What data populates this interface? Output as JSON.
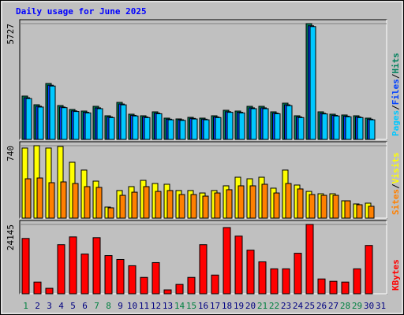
{
  "chart_data": {
    "type": "bar",
    "title": "Daily usage for June 2025",
    "categories": [
      "1",
      "2",
      "3",
      "4",
      "5",
      "6",
      "7",
      "8",
      "9",
      "10",
      "11",
      "12",
      "13",
      "14",
      "15",
      "16",
      "17",
      "18",
      "19",
      "20",
      "21",
      "22",
      "23",
      "24",
      "25",
      "26",
      "27",
      "28",
      "29",
      "30",
      "31"
    ],
    "category_colors": [
      "#008040",
      "#000080",
      "#000080",
      "#000080",
      "#000080",
      "#000080",
      "#008040",
      "#008040",
      "#000080",
      "#000080",
      "#000080",
      "#000080",
      "#000080",
      "#008040",
      "#008040",
      "#000080",
      "#000080",
      "#000080",
      "#000080",
      "#000080",
      "#008040",
      "#008040",
      "#000080",
      "#000080",
      "#000080",
      "#000080",
      "#000080",
      "#008040",
      "#008040",
      "#000080",
      "#000080"
    ],
    "legend_separator": "/",
    "panels": [
      {
        "ylim": [
          0,
          5727
        ],
        "yticks": [
          5727
        ],
        "series": [
          {
            "name": "Hits",
            "color": "#00805c",
            "values": [
              2143,
              1714,
              2766,
              1675,
              1480,
              1402,
              1636,
              1169,
              1831,
              1247,
              1169,
              1364,
              1052,
              1013,
              1091,
              1052,
              1169,
              1441,
              1402,
              1636,
              1636,
              1364,
              1792,
              1169,
              5727,
              1364,
              1247,
              1208,
              1169,
              1052,
              null
            ]
          },
          {
            "name": "Files",
            "color": "#0040ff",
            "values": [
              2060,
              1640,
              2680,
              1600,
              1410,
              1340,
              1560,
              1110,
              1750,
              1190,
              1110,
              1300,
              1000,
              970,
              1040,
              1000,
              1110,
              1370,
              1340,
              1560,
              1560,
              1300,
              1710,
              1110,
              5620,
              1290,
              1190,
              1150,
              1110,
              1000,
              null
            ]
          },
          {
            "name": "Pages",
            "color": "#00c8ff",
            "values": [
              2020,
              1600,
              2640,
              1570,
              1380,
              1310,
              1520,
              1080,
              1710,
              1160,
              1080,
              1270,
              970,
              940,
              1010,
              970,
              1080,
              1340,
              1310,
              1520,
              1520,
              1270,
              1670,
              1080,
              5580,
              1260,
              1160,
              1120,
              1080,
              970,
              null
            ]
          }
        ]
      },
      {
        "ylim": [
          0,
          740
        ],
        "yticks": [
          740
        ],
        "series": [
          {
            "name": "Visits",
            "color": "#ffff00",
            "values": [
              716,
              740,
              716,
              732,
              571,
              491,
              378,
              113,
              282,
              322,
              386,
              354,
              346,
              282,
              282,
              257,
              282,
              330,
              418,
              402,
              418,
              306,
              491,
              338,
              273,
              249,
              249,
              177,
              145,
              153,
              null
            ]
          },
          {
            "name": "Sites",
            "color": "#ff8000",
            "values": [
              402,
              410,
              362,
              370,
              354,
              322,
              314,
              105,
              233,
              265,
              322,
              273,
              282,
              241,
              241,
              225,
              257,
              290,
              330,
              330,
              346,
              257,
              354,
              298,
              241,
              233,
              233,
              177,
              137,
              121,
              null
            ]
          }
        ]
      },
      {
        "ylim": [
          0,
          24145
        ],
        "yticks": [
          24145
        ],
        "series": [
          {
            "name": "KBytes",
            "color": "#ff0000",
            "values": [
              19262,
              4069,
              1899,
              17091,
              19804,
              13836,
              19533,
              13294,
              11937,
              9767,
              5697,
              10852,
              1356,
              3255,
              5697,
              17091,
              6511,
              23060,
              20075,
              15192,
              11123,
              8681,
              8681,
              14107,
              24145,
              5155,
              4341,
              4069,
              8681,
              16820,
              null
            ]
          }
        ]
      }
    ]
  }
}
